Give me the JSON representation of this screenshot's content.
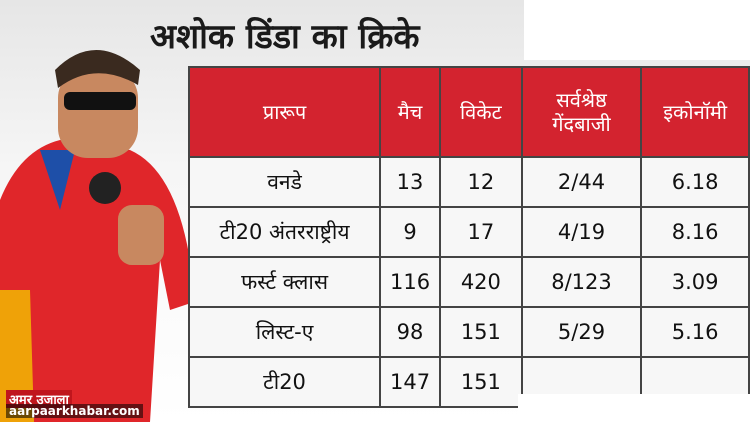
{
  "title": "अशोक डिंडा का क्रिके",
  "table": {
    "header": [
      "प्रारूप",
      "मैच",
      "विकेट",
      "सर्वश्रेष्ठ गेंदबाजी",
      "इकोनॉमी"
    ],
    "rows": [
      [
        "वनडे",
        "13",
        "12",
        "2/44",
        "6.18"
      ],
      [
        "टी20 अंतरराष्ट्रीय",
        "9",
        "17",
        "4/19",
        "8.16"
      ],
      [
        "फर्स्ट क्लास",
        "116",
        "420",
        "8/123",
        "3.09"
      ],
      [
        "लिस्ट-ए",
        "98",
        "151",
        "5/29",
        "5.16"
      ],
      [
        "टी20",
        "147",
        "151"
      ]
    ]
  },
  "watermarks": [
    "अमर उजाला",
    "aarpaarkhabar.com"
  ]
}
